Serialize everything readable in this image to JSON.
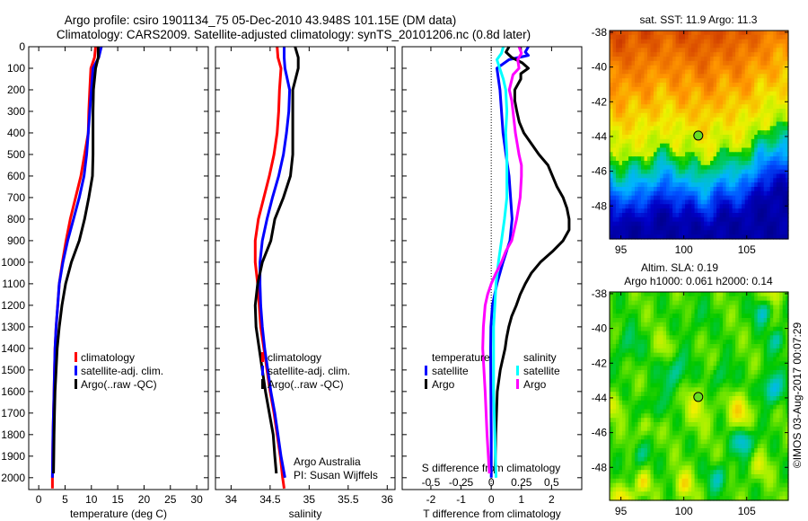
{
  "header": {
    "line1": "Argo profile: csiro 1901134_75 05-Dec-2010 43.948S 101.15E (DM data)",
    "line2": "Climatology: CARS2009. Satellite-adjusted climatology: synTS_20101206.nc (0.8d later)"
  },
  "attribution": {
    "line1": "Argo Australia",
    "line2": "PI: Susan Wijffels"
  },
  "maps": {
    "sst_title": "sat. SST: 11.9 Argo: 11.3",
    "sla_title1": "Altim. SLA: 0.19",
    "sla_title2": "Argo h1000: 0.061 h2000: 0.14",
    "credit": "©IMOS 03-Aug-2017 00:07:29",
    "lat_ticks": [
      -38,
      -40,
      -42,
      -44,
      -46,
      -48
    ],
    "lon_ticks": [
      95,
      100,
      105
    ],
    "float_position": {
      "lon": 101.15,
      "lat": -43.948
    }
  },
  "colors": {
    "climatology": "#ff0000",
    "satellite": "#0000ff",
    "argo": "#000000",
    "sal_satellite": "#00ffff",
    "sal_argo": "#ff00ff"
  },
  "chart_data": [
    {
      "type": "line",
      "title": "",
      "xlabel": "temperature (deg C)",
      "ylabel": "",
      "xlim": [
        -1.9,
        32.2
      ],
      "ylim": [
        0,
        2055
      ],
      "y_reversed": true,
      "xticks": [
        0,
        5,
        10,
        15,
        20,
        25,
        30
      ],
      "yticks": [
        0,
        100,
        200,
        300,
        400,
        500,
        600,
        700,
        800,
        900,
        1000,
        1100,
        1200,
        1300,
        1400,
        1500,
        1600,
        1700,
        1800,
        1900,
        2000
      ],
      "legend": [
        {
          "label": "climatology",
          "color": "#ff0000"
        },
        {
          "label": "satellite-adj. clim.",
          "color": "#0000ff"
        },
        {
          "label": "Argo(..raw -QC)",
          "color": "#000000"
        }
      ],
      "series": [
        {
          "name": "climatology",
          "color": "#ff0000",
          "depth": [
            0,
            50,
            100,
            200,
            300,
            400,
            500,
            600,
            700,
            800,
            900,
            1000,
            1100,
            1200,
            1300,
            1400,
            1500,
            1600,
            1700,
            1800,
            1900,
            2000,
            2050
          ],
          "values": [
            10.8,
            10.6,
            9.9,
            9.7,
            9.5,
            9.4,
            8.7,
            8.0,
            7.0,
            6.0,
            5.2,
            4.5,
            3.9,
            3.6,
            3.3,
            3.1,
            3.0,
            2.9,
            2.8,
            2.7,
            2.65,
            2.6,
            2.6
          ]
        },
        {
          "name": "satellite-adj. clim.",
          "color": "#0000ff",
          "depth": [
            0,
            50,
            100,
            200,
            300,
            400,
            500,
            600,
            700,
            800,
            900,
            1000,
            1100,
            1200,
            1300,
            1400,
            1500,
            1600,
            1700,
            1800,
            1900,
            2000
          ],
          "values": [
            11.9,
            11.4,
            10.3,
            10.0,
            9.7,
            9.4,
            9.1,
            8.6,
            7.7,
            6.6,
            5.5,
            4.6,
            3.9,
            3.6,
            3.3,
            3.1,
            3.0,
            2.9,
            2.8,
            2.7,
            2.65,
            2.6
          ]
        },
        {
          "name": "Argo(..raw -QC)",
          "color": "#000000",
          "depth": [
            0,
            50,
            100,
            200,
            300,
            400,
            500,
            600,
            700,
            800,
            900,
            1000,
            1100,
            1200,
            1300,
            1400,
            1500,
            1600,
            1700,
            1800,
            1900,
            1980
          ],
          "values": [
            11.3,
            11.3,
            10.8,
            10.4,
            10.3,
            10.3,
            10.3,
            10.2,
            9.5,
            8.7,
            7.7,
            6.2,
            5.1,
            4.4,
            3.9,
            3.5,
            3.3,
            3.1,
            3.0,
            2.9,
            2.85,
            2.8
          ]
        }
      ]
    },
    {
      "type": "line",
      "title": "",
      "xlabel": "salinity",
      "ylabel": "",
      "xlim": [
        33.8,
        36.1
      ],
      "ylim": [
        0,
        2055
      ],
      "y_reversed": true,
      "xticks": [
        34,
        34.5,
        35,
        35.5,
        36
      ],
      "legend": [
        {
          "label": "climatology",
          "color": "#ff0000"
        },
        {
          "label": "satellite-adj. clim.",
          "color": "#0000ff"
        },
        {
          "label": "Argo(..raw -QC)",
          "color": "#000000"
        }
      ],
      "series": [
        {
          "name": "climatology",
          "color": "#ff0000",
          "depth": [
            0,
            50,
            100,
            200,
            300,
            400,
            500,
            600,
            700,
            800,
            900,
            1000,
            1100,
            1200,
            1300,
            1400,
            1500,
            1600,
            1700,
            1800,
            1900,
            2000,
            2050
          ],
          "values": [
            34.59,
            34.6,
            34.64,
            34.62,
            34.61,
            34.59,
            34.55,
            34.49,
            34.42,
            34.35,
            34.31,
            34.31,
            34.34,
            34.36,
            34.38,
            34.42,
            34.46,
            34.5,
            34.55,
            34.59,
            34.63,
            34.66,
            34.68
          ]
        },
        {
          "name": "satellite-adj. clim.",
          "color": "#0000ff",
          "depth": [
            0,
            50,
            100,
            200,
            300,
            400,
            500,
            600,
            700,
            800,
            900,
            1000,
            1100,
            1200,
            1300,
            1400,
            1500,
            1600,
            1700,
            1800,
            1900,
            2000
          ],
          "values": [
            34.68,
            34.68,
            34.69,
            34.75,
            34.74,
            34.71,
            34.67,
            34.61,
            34.53,
            34.46,
            34.4,
            34.37,
            34.37,
            34.38,
            34.4,
            34.43,
            34.47,
            34.51,
            34.56,
            34.6,
            34.64,
            34.69
          ]
        },
        {
          "name": "Argo(..raw -QC)",
          "color": "#000000",
          "depth": [
            0,
            50,
            100,
            200,
            300,
            400,
            500,
            600,
            700,
            800,
            900,
            1000,
            1100,
            1200,
            1300,
            1400,
            1500,
            1600,
            1700,
            1800,
            1900,
            1980
          ],
          "values": [
            34.82,
            34.86,
            34.86,
            34.79,
            34.79,
            34.79,
            34.79,
            34.76,
            34.67,
            34.56,
            34.51,
            34.4,
            34.34,
            34.31,
            34.32,
            34.36,
            34.4,
            34.44,
            34.49,
            34.54,
            34.56,
            34.58
          ]
        }
      ]
    },
    {
      "type": "line",
      "title": "",
      "xlabel": "T difference from climatology",
      "xlabel2": "S difference from climatology",
      "ylabel": "",
      "xlim": [
        -2.95,
        3.0
      ],
      "x2lim": [
        -0.7375,
        0.75
      ],
      "ylim": [
        0,
        2055
      ],
      "y_reversed": true,
      "xticks": [
        -2,
        -1,
        0,
        1,
        2
      ],
      "x2ticks": [
        -0.5,
        -0.25,
        0,
        0.25,
        0.5
      ],
      "legend_headers": {
        "temperature": "temperature",
        "salinity": "salinity"
      },
      "legend": [
        {
          "group": "temperature",
          "label": "satellite",
          "color": "#0000ff"
        },
        {
          "group": "temperature",
          "label": "Argo",
          "color": "#000000"
        },
        {
          "group": "salinity",
          "label": "satellite",
          "color": "#00ffff"
        },
        {
          "group": "salinity",
          "label": "Argo",
          "color": "#ff00ff"
        }
      ],
      "series": [
        {
          "name": "temperature satellite",
          "axis": "T",
          "color": "#0000ff",
          "depth": [
            0,
            25,
            40,
            60,
            100,
            150,
            200,
            300,
            400,
            500,
            600,
            700,
            800,
            900,
            1000,
            1100,
            1200,
            1300,
            1400,
            1600,
            1800,
            2000
          ],
          "values": [
            1.23,
            1.13,
            1.23,
            0.59,
            0.19,
            0.24,
            0.29,
            0.34,
            0.39,
            0.49,
            0.59,
            0.64,
            0.69,
            0.62,
            0.39,
            0.19,
            0.04,
            -0.01,
            -0.02,
            -0.01,
            0,
            0
          ]
        },
        {
          "name": "temperature Argo",
          "axis": "T",
          "color": "#000000",
          "depth": [
            0,
            25,
            50,
            75,
            100,
            125,
            150,
            200,
            250,
            300,
            350,
            400,
            450,
            500,
            550,
            600,
            650,
            700,
            750,
            800,
            850,
            900,
            950,
            1000,
            1050,
            1100,
            1150,
            1200,
            1250,
            1300,
            1350,
            1400,
            1500,
            1600,
            1800,
            1980
          ],
          "values": [
            0.59,
            0.49,
            0.68,
            1.03,
            1.23,
            0.98,
            0.98,
            0.78,
            0.78,
            0.85,
            0.93,
            1.08,
            1.33,
            1.58,
            1.88,
            2.03,
            2.18,
            2.38,
            2.51,
            2.58,
            2.58,
            2.38,
            2.03,
            1.63,
            1.33,
            1.13,
            0.96,
            0.83,
            0.68,
            0.58,
            0.51,
            0.46,
            0.3,
            0.2,
            0.15,
            0.13
          ]
        },
        {
          "name": "salinity satellite",
          "axis": "S",
          "color": "#00ffff",
          "depth": [
            0,
            30,
            60,
            100,
            150,
            200,
            300,
            400,
            500,
            600,
            700,
            800,
            900,
            1000,
            1100,
            1200,
            1300,
            1400,
            1600,
            1800,
            2000
          ],
          "values": [
            0.1,
            0.085,
            0.047,
            0.07,
            0.1,
            0.12,
            0.13,
            0.12,
            0.13,
            0.13,
            0.13,
            0.11,
            0.085,
            0.06,
            0.04,
            0.03,
            0.02,
            0.02,
            0.02,
            0.03,
            0.04
          ]
        },
        {
          "name": "salinity Argo",
          "axis": "S",
          "color": "#ff00ff",
          "depth": [
            0,
            30,
            60,
            100,
            130,
            200,
            250,
            300,
            400,
            500,
            550,
            600,
            700,
            800,
            850,
            900,
            950,
            1000,
            1050,
            1100,
            1150,
            1200,
            1300,
            1400,
            1600,
            1800,
            1980
          ],
          "values": [
            0.23,
            0.25,
            0.22,
            0.23,
            0.18,
            0.15,
            0.17,
            0.18,
            0.2,
            0.23,
            0.25,
            0.25,
            0.24,
            0.21,
            0.19,
            0.17,
            0.12,
            0.085,
            0.04,
            0,
            -0.03,
            -0.05,
            -0.065,
            -0.07,
            -0.05,
            -0.035,
            -0.015
          ]
        }
      ]
    }
  ]
}
